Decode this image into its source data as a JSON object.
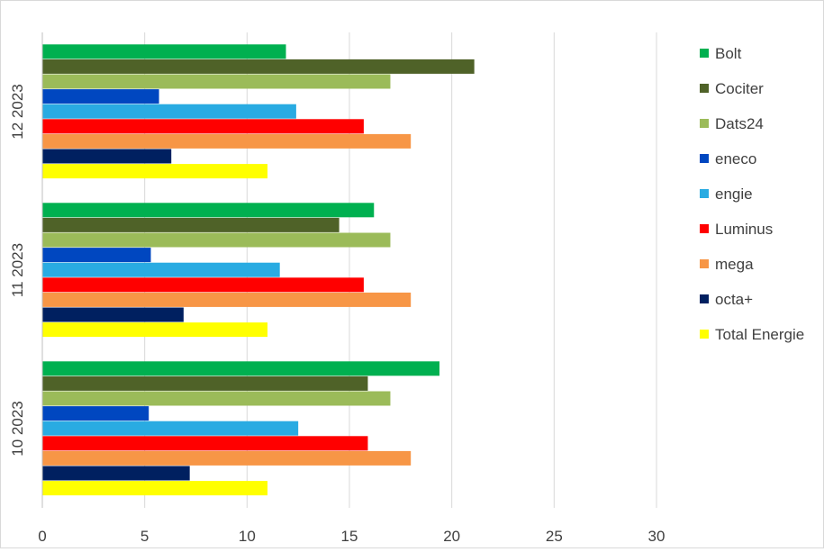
{
  "chart_data": {
    "type": "bar",
    "orientation": "horizontal",
    "categories": [
      "12 2023",
      "11 2023",
      "10 2023"
    ],
    "xlim": [
      0,
      30
    ],
    "xticks": [
      0,
      5,
      10,
      15,
      20,
      25,
      30
    ],
    "grid": true,
    "legend_position": "right",
    "series": [
      {
        "name": "Bolt",
        "color": "#00b050",
        "values": [
          11.9,
          16.2,
          19.4
        ]
      },
      {
        "name": "Cociter",
        "color": "#4f6228",
        "values": [
          21.1,
          14.5,
          15.9
        ]
      },
      {
        "name": "Dats24",
        "color": "#9bbb59",
        "values": [
          17.0,
          17.0,
          17.0
        ]
      },
      {
        "name": "eneco",
        "color": "#0047c0",
        "values": [
          5.7,
          5.3,
          5.2
        ]
      },
      {
        "name": "engie",
        "color": "#29abe2",
        "values": [
          12.4,
          11.6,
          12.5
        ]
      },
      {
        "name": "Luminus",
        "color": "#ff0000",
        "values": [
          15.7,
          15.7,
          15.9
        ]
      },
      {
        "name": "mega",
        "color": "#f79646",
        "values": [
          18.0,
          18.0,
          18.0
        ]
      },
      {
        "name": "octa+",
        "color": "#002060",
        "values": [
          6.3,
          6.9,
          7.2
        ]
      },
      {
        "name": "Total Energie",
        "color": "#ffff00",
        "values": [
          11.0,
          11.0,
          11.0
        ]
      }
    ]
  }
}
